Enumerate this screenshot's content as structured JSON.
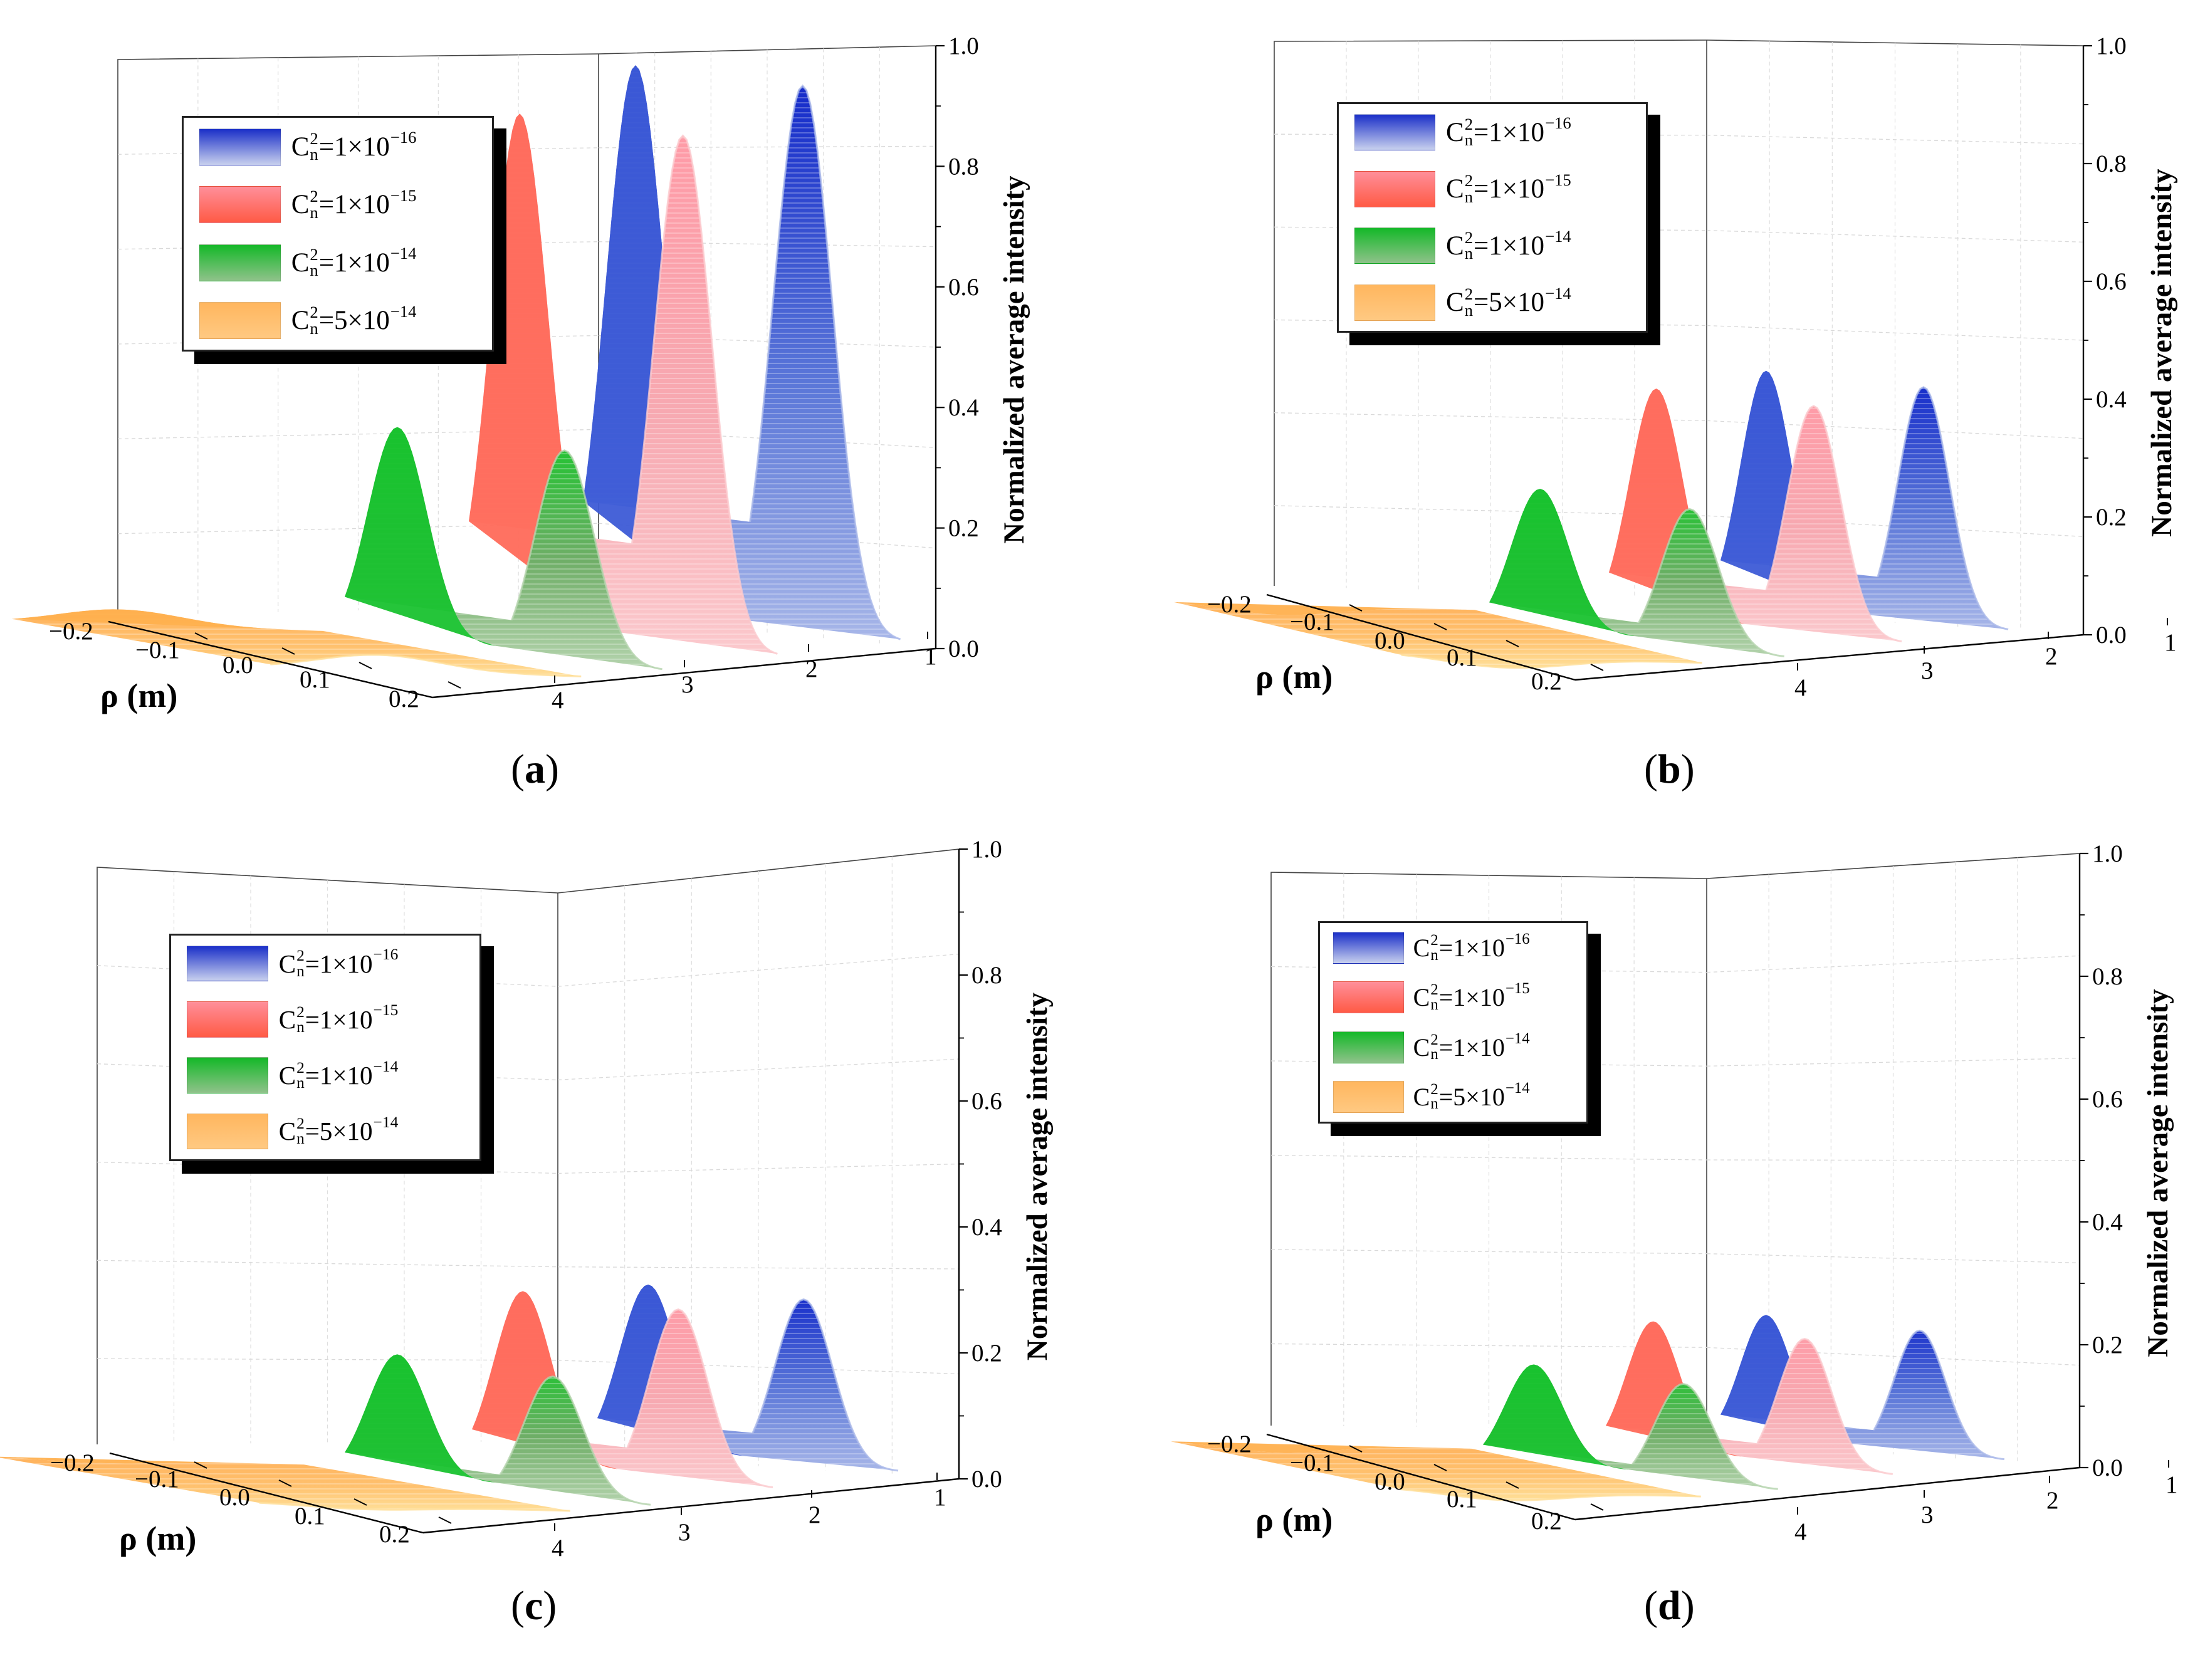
{
  "figure": {
    "captions": [
      "a",
      "b",
      "c",
      "d"
    ]
  },
  "chart_data": [
    {
      "id": "a",
      "type": "surface3d",
      "zlabel": "Normalized average intensity",
      "xlabel": "ρ (m)",
      "zticks": [
        "0.0",
        "0.2",
        "0.4",
        "0.6",
        "0.8",
        "1.0"
      ],
      "rho_ticks": [
        "−0.2",
        "−0.1",
        "0.0",
        "0.1",
        "0.2"
      ],
      "depth_ticks": [
        "1",
        "2",
        "3",
        "4"
      ],
      "zlim": [
        0,
        1
      ],
      "series": [
        {
          "name": "Cn2=1×10^-16",
          "coef": "1",
          "exp": "−16",
          "peak": 0.97,
          "depth": 2
        },
        {
          "name": "Cn2=1×10^-15",
          "coef": "1",
          "exp": "−15",
          "peak": 0.89,
          "depth": 3
        },
        {
          "name": "Cn2=1×10^-14",
          "coef": "1",
          "exp": "−14",
          "peak": 0.37,
          "depth": 4
        },
        {
          "name": "Cn2=5×10^-14",
          "coef": "5",
          "exp": "−14",
          "peak": 0.07,
          "depth": 5
        }
      ]
    },
    {
      "id": "b",
      "type": "surface3d",
      "zlabel": "Normalized average intensity",
      "xlabel": "ρ (m)",
      "zticks": [
        "0.0",
        "0.2",
        "0.4",
        "0.6",
        "0.8",
        "1.0"
      ],
      "rho_ticks": [
        "−0.2",
        "−0.1",
        "0.0",
        "0.1",
        "0.2"
      ],
      "depth_ticks": [
        "1",
        "2",
        "3",
        "4"
      ],
      "zlim": [
        0,
        1
      ],
      "series": [
        {
          "name": "Cn2=1×10^-16",
          "coef": "1",
          "exp": "−16",
          "peak": 0.45,
          "depth": 2
        },
        {
          "name": "Cn2=1×10^-15",
          "coef": "1",
          "exp": "−15",
          "peak": 0.42,
          "depth": 3
        },
        {
          "name": "Cn2=1×10^-14",
          "coef": "1",
          "exp": "−14",
          "peak": 0.25,
          "depth": 4
        },
        {
          "name": "Cn2=5×10^-14",
          "coef": "5",
          "exp": "−14",
          "peak": 0.04,
          "depth": 5
        }
      ]
    },
    {
      "id": "c",
      "type": "surface3d",
      "zlabel": "Normalized average intensity",
      "xlabel": "ρ (m)",
      "zticks": [
        "0.0",
        "0.2",
        "0.4",
        "0.6",
        "0.8",
        "1.0"
      ],
      "rho_ticks": [
        "−0.2",
        "−0.1",
        "0.0",
        "0.1",
        "0.2"
      ],
      "depth_ticks": [
        "1",
        "2",
        "3",
        "4"
      ],
      "zlim": [
        0,
        1
      ],
      "series": [
        {
          "name": "Cn2=1×10^-16",
          "coef": "1",
          "exp": "−16",
          "peak": 0.31,
          "depth": 2
        },
        {
          "name": "Cn2=1×10^-15",
          "coef": "1",
          "exp": "−15",
          "peak": 0.3,
          "depth": 3
        },
        {
          "name": "Cn2=1×10^-14",
          "coef": "1",
          "exp": "−14",
          "peak": 0.2,
          "depth": 4
        },
        {
          "name": "Cn2=5×10^-14",
          "coef": "5",
          "exp": "−14",
          "peak": 0.03,
          "depth": 5
        }
      ]
    },
    {
      "id": "d",
      "type": "surface3d",
      "zlabel": "Normalized average intensity",
      "xlabel": "ρ (m)",
      "zticks": [
        "0.0",
        "0.2",
        "0.4",
        "0.6",
        "0.8",
        "1.0"
      ],
      "rho_ticks": [
        "−0.2",
        "−0.1",
        "0.0",
        "0.1",
        "0.2"
      ],
      "depth_ticks": [
        "1",
        "2",
        "3",
        "4"
      ],
      "zlim": [
        0,
        1
      ],
      "series": [
        {
          "name": "Cn2=1×10^-16",
          "coef": "1",
          "exp": "−16",
          "peak": 0.25,
          "depth": 2
        },
        {
          "name": "Cn2=1×10^-15",
          "coef": "1",
          "exp": "−15",
          "peak": 0.24,
          "depth": 3
        },
        {
          "name": "Cn2=1×10^-14",
          "coef": "1",
          "exp": "−14",
          "peak": 0.17,
          "depth": 4
        },
        {
          "name": "Cn2=5×10^-14",
          "coef": "5",
          "exp": "−14",
          "peak": 0.03,
          "depth": 5
        }
      ]
    }
  ]
}
